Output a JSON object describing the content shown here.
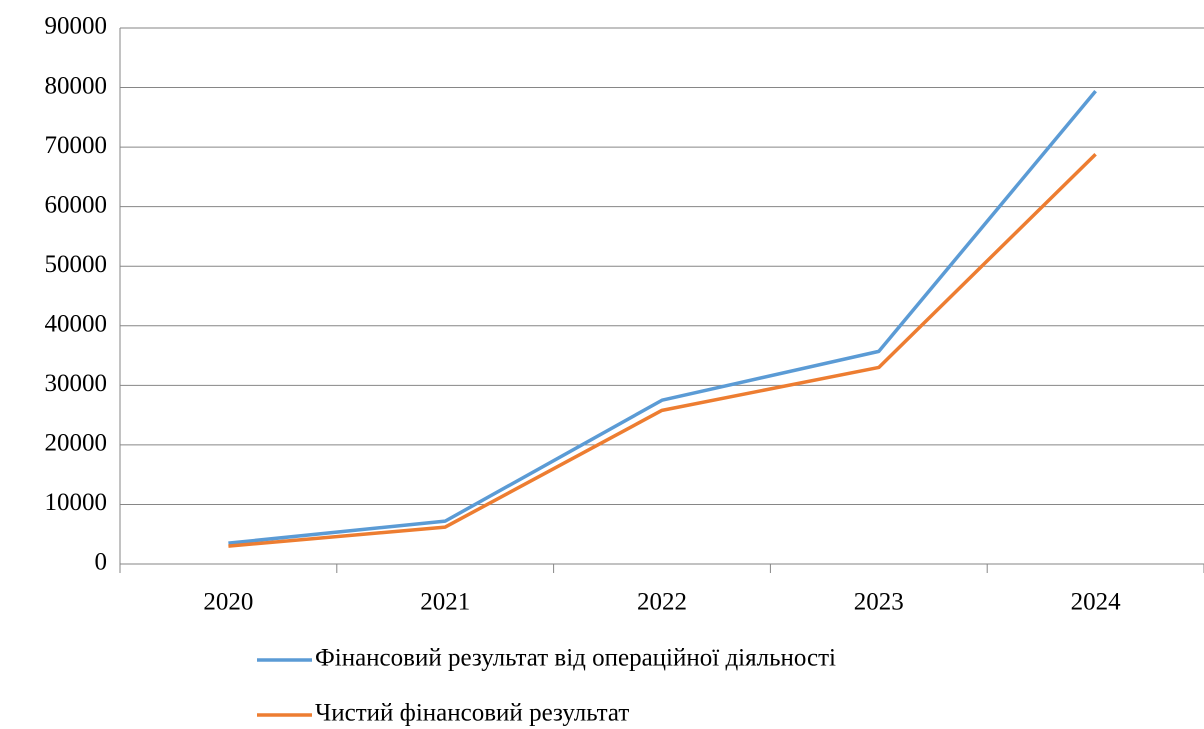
{
  "chart_data": {
    "type": "line",
    "categories": [
      "2020",
      "2021",
      "2022",
      "2023",
      "2024"
    ],
    "series": [
      {
        "name": "Фінансовий результат від операційної діяльності",
        "color": "#5b9bd5",
        "values": [
          3500,
          7200,
          27500,
          35700,
          79400
        ]
      },
      {
        "name": "Чистий фінансовий результат",
        "color": "#ed7d31",
        "values": [
          3000,
          6200,
          25800,
          33000,
          68800
        ]
      }
    ],
    "ylim": [
      0,
      90000
    ],
    "yticks": [
      0,
      10000,
      20000,
      30000,
      40000,
      50000,
      60000,
      70000,
      80000,
      90000
    ],
    "grid": true,
    "legend": "bottom"
  }
}
